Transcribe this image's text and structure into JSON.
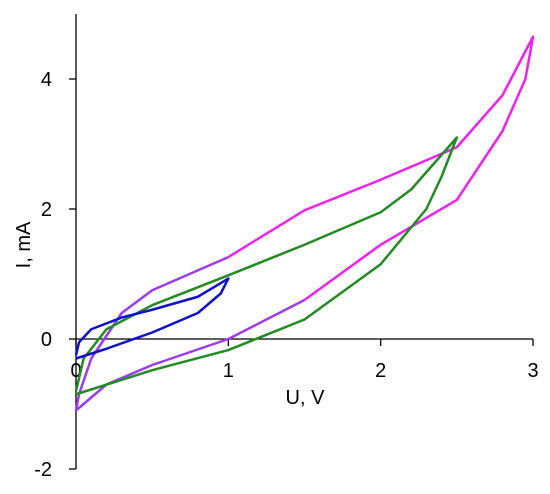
{
  "chart_data": {
    "type": "line",
    "x_label": "U, V",
    "y_label": "I, mA",
    "xlim": [
      0,
      3
    ],
    "xticks": [
      0,
      1,
      2,
      3
    ],
    "ylim": [
      -2,
      5
    ],
    "yticks": [
      -2,
      0,
      2,
      4
    ],
    "grid": false,
    "series": [
      {
        "color": "#ee22ee",
        "x": [
          1.5,
          2,
          2.5,
          2.8,
          2.95,
          3,
          2.8,
          2.5,
          2,
          1.5,
          1
        ],
        "values": [
          0.6,
          1.45,
          2.14,
          3.2,
          4.0,
          4.65,
          3.75,
          2.95,
          2.45,
          1.98,
          1.26
        ]
      },
      {
        "color": "#9b3cf0",
        "x": [
          1,
          0.5,
          0.3,
          0.1,
          0.02,
          0,
          0.2,
          0.5,
          1,
          1.5
        ],
        "values": [
          1.26,
          0.75,
          0.4,
          -0.3,
          -0.85,
          -1.1,
          -0.7,
          -0.4,
          0,
          0.6
        ]
      },
      {
        "color": "#228b22",
        "x": [
          0,
          0.5,
          1,
          1.5,
          2,
          2.3,
          2.4,
          2.5,
          2.2,
          2,
          1.5,
          1,
          0.5,
          0.2,
          0.05,
          0
        ],
        "values": [
          -0.85,
          -0.48,
          -0.17,
          0.3,
          1.15,
          2.0,
          2.5,
          3.1,
          2.3,
          1.95,
          1.45,
          0.98,
          0.52,
          0.15,
          -0.3,
          -0.8
        ]
      },
      {
        "color": "#1111cc",
        "x": [
          0,
          0.2,
          0.5,
          0.8,
          0.95,
          1,
          0.8,
          0.5,
          0.3,
          0.1,
          0.02,
          0
        ],
        "values": [
          -0.3,
          -0.15,
          0.1,
          0.4,
          0.7,
          0.93,
          0.65,
          0.45,
          0.33,
          0.15,
          -0.05,
          -0.25
        ]
      }
    ]
  }
}
